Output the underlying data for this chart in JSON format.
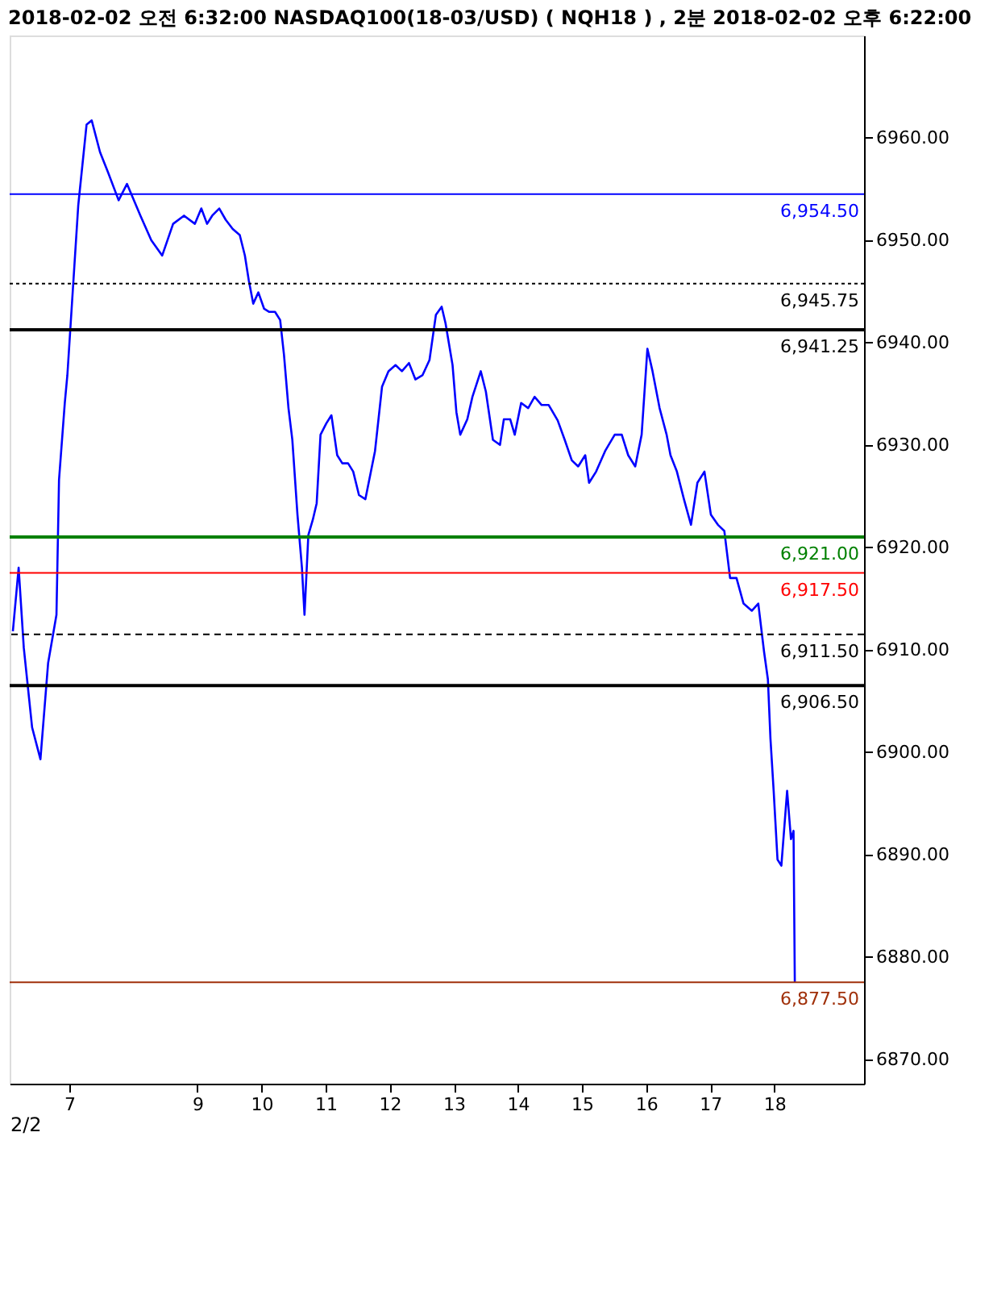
{
  "chart_data": {
    "type": "line",
    "title": "2018-02-02 오전 6:32:00 NASDAQ100(18-03/USD)  ( NQH18 ) , 2분 2018-02-02 오후 6:22:00",
    "x": [
      6.12,
      6.21,
      6.29,
      6.42,
      6.55,
      6.67,
      6.8,
      6.84,
      6.93,
      6.97,
      7.14,
      7.27,
      7.35,
      7.48,
      7.6,
      7.77,
      7.9,
      8.11,
      8.28,
      8.45,
      8.62,
      8.79,
      8.96,
      9.06,
      9.15,
      9.23,
      9.34,
      9.44,
      9.55,
      9.66,
      9.74,
      9.8,
      9.87,
      9.95,
      10.04,
      10.12,
      10.21,
      10.29,
      10.35,
      10.42,
      10.48,
      10.56,
      10.63,
      10.67,
      10.73,
      10.8,
      10.86,
      10.92,
      11.01,
      11.09,
      11.18,
      11.26,
      11.35,
      11.43,
      11.52,
      11.62,
      11.77,
      11.88,
      11.98,
      12.09,
      12.19,
      12.3,
      12.4,
      12.51,
      12.62,
      12.72,
      12.81,
      12.87,
      12.98,
      13.04,
      13.1,
      13.21,
      13.29,
      13.42,
      13.5,
      13.61,
      13.72,
      13.78,
      13.88,
      13.95,
      14.05,
      14.16,
      14.26,
      14.37,
      14.48,
      14.62,
      14.73,
      14.84,
      14.94,
      15.05,
      15.11,
      15.22,
      15.36,
      15.51,
      15.62,
      15.72,
      15.83,
      15.93,
      16.02,
      16.1,
      16.21,
      16.32,
      16.38,
      16.48,
      16.59,
      16.7,
      16.8,
      16.91,
      17.01,
      17.12,
      17.22,
      17.31,
      17.41,
      17.52,
      17.65,
      17.75,
      17.84,
      17.9,
      17.94,
      17.99,
      18.05,
      18.11,
      18.2,
      18.26,
      18.3,
      18.32
    ],
    "series": [
      {
        "color": "#0000ff",
        "values": [
          6911.8,
          6918.0,
          6910.2,
          6902.4,
          6899.3,
          6908.7,
          6913.4,
          6926.6,
          6934.1,
          6936.8,
          6953.4,
          6961.3,
          6961.7,
          6958.6,
          6956.7,
          6953.9,
          6955.5,
          6952.4,
          6950.0,
          6948.5,
          6951.6,
          6952.4,
          6951.6,
          6953.1,
          6951.6,
          6952.4,
          6953.1,
          6952.0,
          6951.1,
          6950.5,
          6948.5,
          6946.1,
          6943.8,
          6944.9,
          6943.3,
          6943.0,
          6943.0,
          6942.2,
          6938.8,
          6933.6,
          6930.5,
          6923.2,
          6918.0,
          6913.4,
          6921.2,
          6922.7,
          6924.3,
          6931.0,
          6932.1,
          6932.9,
          6929.0,
          6928.2,
          6928.2,
          6927.4,
          6925.1,
          6924.7,
          6929.4,
          6935.7,
          6937.2,
          6937.8,
          6937.2,
          6938.0,
          6936.4,
          6936.8,
          6938.3,
          6942.7,
          6943.5,
          6941.9,
          6937.8,
          6933.2,
          6931.0,
          6932.5,
          6934.7,
          6937.2,
          6935.2,
          6930.5,
          6930.0,
          6932.5,
          6932.5,
          6931.0,
          6934.1,
          6933.6,
          6934.7,
          6933.9,
          6933.9,
          6932.4,
          6930.5,
          6928.5,
          6927.9,
          6929.0,
          6926.3,
          6927.4,
          6929.4,
          6931.0,
          6931.0,
          6929.0,
          6927.9,
          6931.0,
          6939.4,
          6937.2,
          6933.6,
          6931.0,
          6929.0,
          6927.4,
          6924.7,
          6922.2,
          6926.3,
          6927.4,
          6923.2,
          6922.2,
          6921.6,
          6917.0,
          6917.0,
          6914.5,
          6913.8,
          6914.5,
          6909.8,
          6907.1,
          6901.3,
          6896.2,
          6889.5,
          6888.9,
          6896.2,
          6891.5,
          6892.3,
          6877.5
        ]
      }
    ],
    "xlim": [
      6.07,
      19.4
    ],
    "xticks": [
      7,
      9,
      10,
      11,
      12,
      13,
      14,
      15,
      16,
      17,
      18
    ],
    "xlabel": "2/2",
    "ylim": [
      6867.6,
      6970.0
    ],
    "yticks": [
      {
        "value": 6870,
        "label": "6870.00"
      },
      {
        "value": 6880,
        "label": "6880.00"
      },
      {
        "value": 6890,
        "label": "6890.00"
      },
      {
        "value": 6900,
        "label": "6900.00"
      },
      {
        "value": 6910,
        "label": "6910.00"
      },
      {
        "value": 6920,
        "label": "6920.00"
      },
      {
        "value": 6930,
        "label": "6930.00"
      },
      {
        "value": 6940,
        "label": "6940.00"
      },
      {
        "value": 6950,
        "label": "6950.00"
      },
      {
        "value": 6960,
        "label": "6960.00"
      }
    ],
    "ref_lines": [
      {
        "axis": "y",
        "value": 6954.5,
        "label": "6,954.50",
        "color": "#0000ff",
        "line_style": "solid"
      },
      {
        "axis": "y",
        "value": 6945.75,
        "label": "6,945.75",
        "color": "#000000",
        "line_style": "dotted"
      },
      {
        "axis": "y",
        "value": 6941.25,
        "label": "6,941.25",
        "color": "#000000",
        "line_style": "solid"
      },
      {
        "axis": "y",
        "value": 6921.0,
        "label": "6,921.00",
        "color": "#008000",
        "line_style": "solid"
      },
      {
        "axis": "y",
        "value": 6917.5,
        "label": "6,917.50",
        "color": "#ff0000",
        "line_style": "solid"
      },
      {
        "axis": "y",
        "value": 6911.5,
        "label": "6,911.50",
        "color": "#000000",
        "line_style": "dashed"
      },
      {
        "axis": "y",
        "value": 6906.5,
        "label": "6,906.50",
        "color": "#000000",
        "line_style": "solid"
      },
      {
        "axis": "y",
        "value": 6877.5,
        "label": "6,877.50",
        "color": "#a0300a",
        "line_style": "solid"
      }
    ],
    "marker": "none",
    "line_style": "solid",
    "grid": false
  }
}
